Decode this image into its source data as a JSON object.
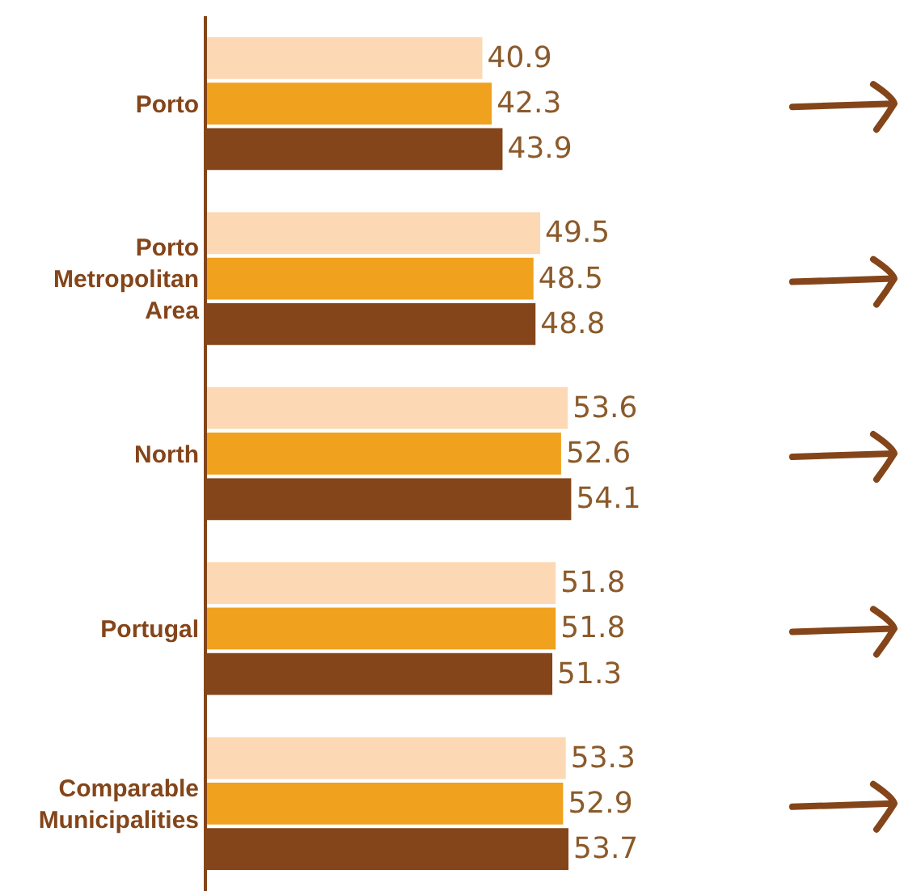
{
  "chart_data": {
    "type": "bar",
    "orientation": "horizontal",
    "data_labels": true,
    "categories": [
      "Porto",
      "Porto Metropolitan Area",
      "North",
      "Portugal",
      "Comparable Municipalities"
    ],
    "series": [
      {
        "color": "#fcd9b4",
        "values": [
          40.9,
          49.5,
          53.6,
          51.8,
          53.3
        ]
      },
      {
        "color": "#f0a11e",
        "values": [
          42.3,
          48.5,
          52.6,
          51.8,
          52.9
        ]
      },
      {
        "color": "#84451a",
        "values": [
          43.9,
          48.8,
          54.1,
          51.3,
          53.7
        ]
      }
    ]
  }
}
